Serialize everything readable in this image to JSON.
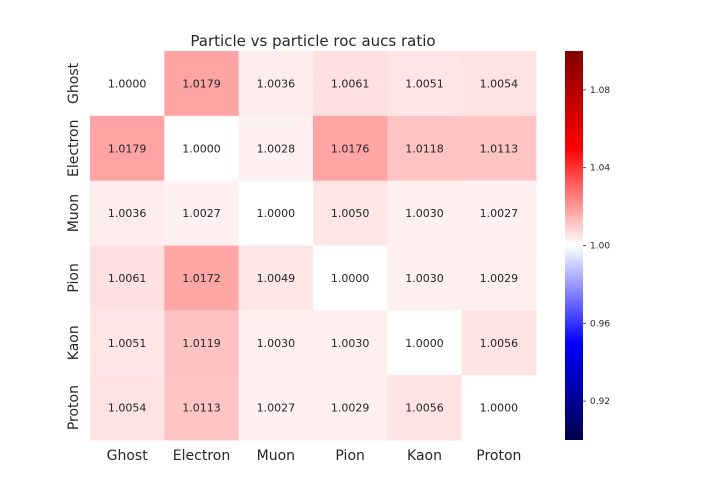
{
  "chart_data": {
    "type": "heatmap",
    "title": "Particle vs particle roc aucs ratio",
    "xlabel": "",
    "ylabel": "",
    "x_categories": [
      "Ghost",
      "Electron",
      "Muon",
      "Pion",
      "Kaon",
      "Proton"
    ],
    "y_categories": [
      "Ghost",
      "Electron",
      "Muon",
      "Pion",
      "Kaon",
      "Proton"
    ],
    "values": [
      [
        1.0,
        1.0179,
        1.0036,
        1.0061,
        1.0051,
        1.0054
      ],
      [
        1.0179,
        1.0,
        1.0028,
        1.0176,
        1.0118,
        1.0113
      ],
      [
        1.0036,
        1.0027,
        1.0,
        1.005,
        1.003,
        1.0027
      ],
      [
        1.0061,
        1.0172,
        1.0049,
        1.0,
        1.003,
        1.0029
      ],
      [
        1.0051,
        1.0119,
        1.003,
        1.003,
        1.0,
        1.0056
      ],
      [
        1.0054,
        1.0113,
        1.0027,
        1.0029,
        1.0056,
        1.0
      ]
    ],
    "labels": [
      [
        "1.0000",
        "1.0179",
        "1.0036",
        "1.0061",
        "1.0051",
        "1.0054"
      ],
      [
        "1.0179",
        "1.0000",
        "1.0028",
        "1.0176",
        "1.0118",
        "1.0113"
      ],
      [
        "1.0036",
        "1.0027",
        "1.0000",
        "1.0050",
        "1.0030",
        "1.0027"
      ],
      [
        "1.0061",
        "1.0172",
        "1.0049",
        "1.0000",
        "1.0030",
        "1.0029"
      ],
      [
        "1.0051",
        "1.0119",
        "1.0030",
        "1.0030",
        "1.0000",
        "1.0056"
      ],
      [
        "1.0054",
        "1.0113",
        "1.0027",
        "1.0029",
        "1.0056",
        "1.0000"
      ]
    ],
    "colormap": "seismic",
    "vmin": 0.9,
    "vmax": 1.1,
    "colorbar_ticks": [
      0.92,
      0.96,
      1.0,
      1.04,
      1.08
    ],
    "colorbar_tick_labels": [
      "0.92",
      "0.96",
      "1.00",
      "1.04",
      "1.08"
    ],
    "colors": {
      "low": "#00004c",
      "mid_low": "#0000ff",
      "center": "#ffffff",
      "mid_high": "#ff0000",
      "high": "#800000",
      "text": "#262626"
    }
  }
}
